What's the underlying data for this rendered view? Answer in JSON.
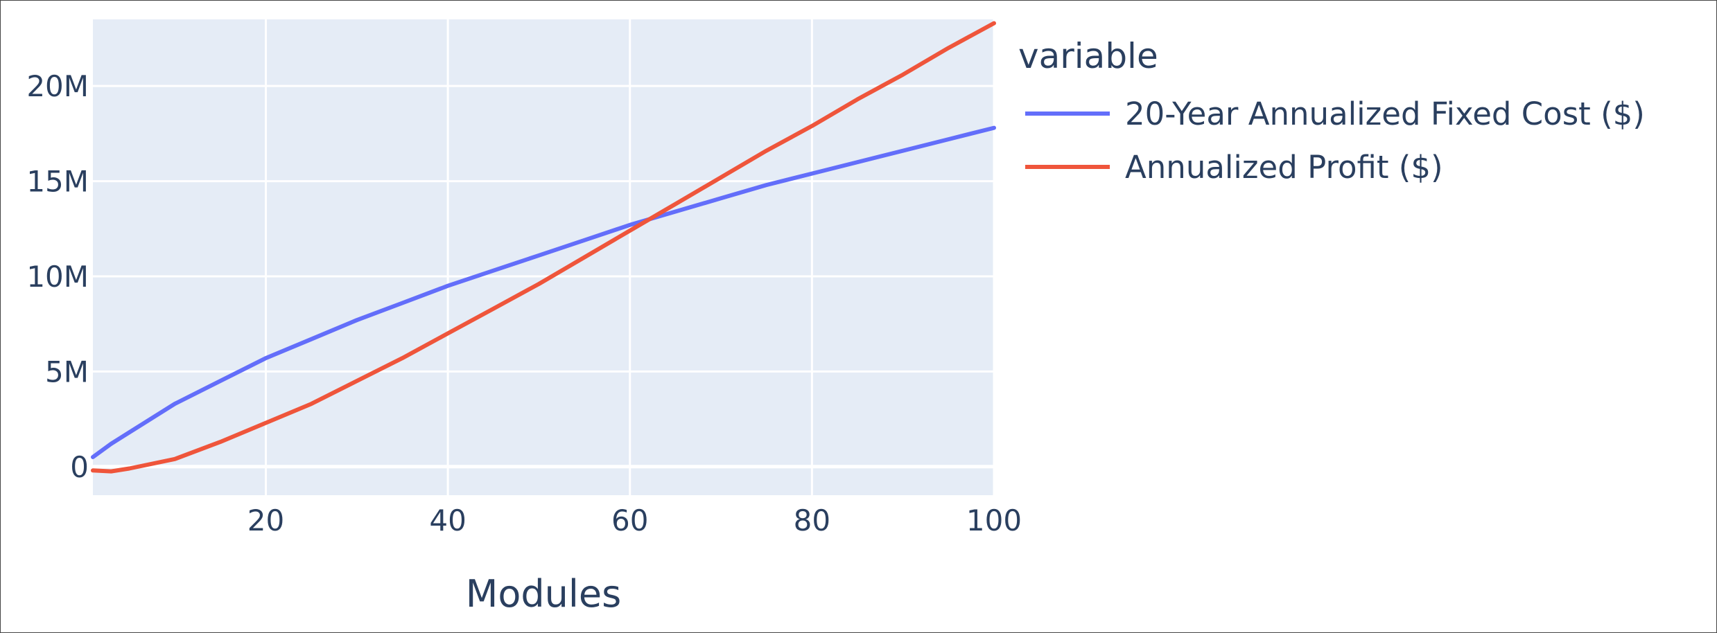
{
  "chart_data": {
    "type": "line",
    "xlabel": "Modules",
    "ylabel": "",
    "xlim": [
      1,
      100
    ],
    "ylim": [
      -1500000,
      23500000
    ],
    "x_ticks": [
      20,
      40,
      60,
      80,
      100
    ],
    "x_tick_labels": [
      "20",
      "40",
      "60",
      "80",
      "100"
    ],
    "y_ticks": [
      0,
      5000000,
      10000000,
      15000000,
      20000000
    ],
    "y_tick_labels": [
      "0",
      "5M",
      "10M",
      "15M",
      "20M"
    ],
    "grid": true,
    "legend": {
      "title": "variable",
      "placement": "right"
    },
    "colors": {
      "plot_bg": "#e5ecf6",
      "grid": "#ffffff",
      "text": "#2a3f5f"
    },
    "series": [
      {
        "name": "20-Year Annualized Fixed Cost ($)",
        "color": "#636efa",
        "x": [
          1,
          3,
          5,
          10,
          15,
          20,
          25,
          30,
          35,
          40,
          45,
          50,
          55,
          60,
          65,
          70,
          75,
          80,
          85,
          90,
          95,
          100
        ],
        "y": [
          500000,
          1200000,
          1800000,
          3300000,
          4500000,
          5700000,
          6700000,
          7700000,
          8600000,
          9500000,
          10300000,
          11100000,
          11900000,
          12700000,
          13400000,
          14100000,
          14800000,
          15400000,
          16000000,
          16600000,
          17200000,
          17800000
        ]
      },
      {
        "name": "Annualized Profit ($)",
        "color": "#ef553b",
        "x": [
          1,
          3,
          5,
          10,
          15,
          20,
          25,
          30,
          35,
          40,
          45,
          50,
          55,
          60,
          65,
          70,
          75,
          80,
          85,
          90,
          95,
          100
        ],
        "y": [
          -200000,
          -250000,
          -100000,
          400000,
          1300000,
          2300000,
          3300000,
          4500000,
          5700000,
          7000000,
          8300000,
          9600000,
          11000000,
          12400000,
          13800000,
          15200000,
          16600000,
          17900000,
          19300000,
          20600000,
          22000000,
          23300000
        ]
      }
    ]
  }
}
